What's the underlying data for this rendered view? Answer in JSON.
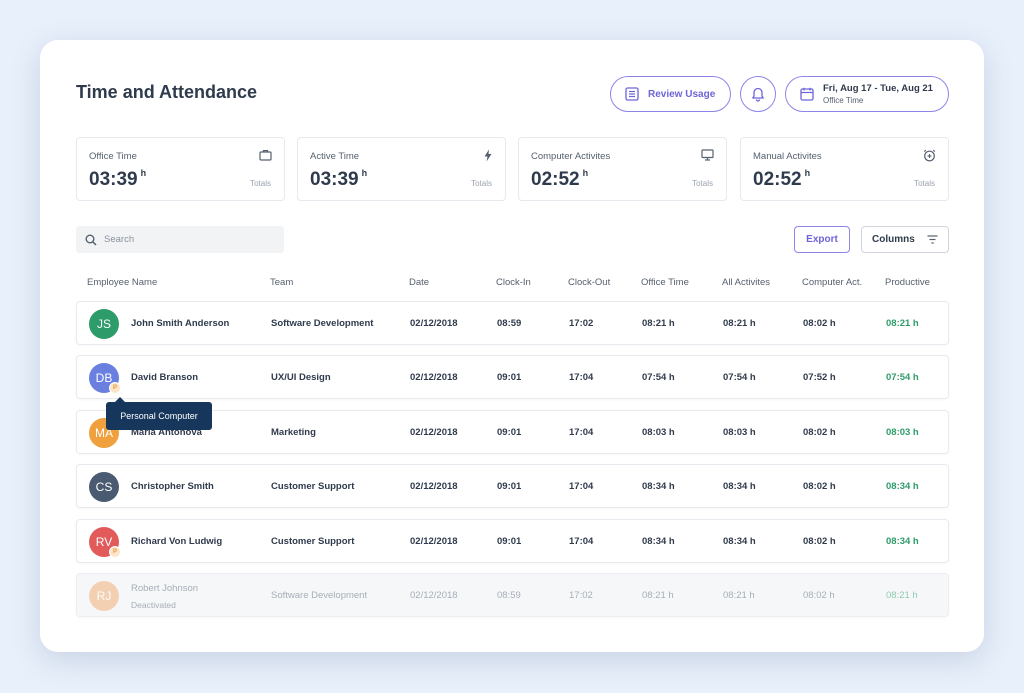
{
  "header": {
    "title": "Time and Attendance",
    "review_label": "Review Usage",
    "date_range": "Fri, Aug 17 - Tue, Aug 21",
    "date_scope": "Office Time"
  },
  "stats": [
    {
      "label": "Office Time",
      "value": "03:39",
      "unit": "h",
      "total": "Totals",
      "icon": "briefcase-icon"
    },
    {
      "label": "Active Time",
      "value": "03:39",
      "unit": "h",
      "total": "Totals",
      "icon": "bolt-icon"
    },
    {
      "label": "Computer Activites",
      "value": "02:52",
      "unit": "h",
      "total": "Totals",
      "icon": "monitor-icon"
    },
    {
      "label": "Manual Activites",
      "value": "02:52",
      "unit": "h",
      "total": "Totals",
      "icon": "alarm-icon"
    }
  ],
  "toolbar": {
    "search_placeholder": "Search",
    "export_label": "Export",
    "columns_label": "Columns"
  },
  "columns": [
    "Employee Name",
    "Team",
    "Date",
    "Clock-In",
    "Clock-Out",
    "Office Time",
    "All Activites",
    "Computer Act.",
    "Productive"
  ],
  "rows": [
    {
      "initials": "JS",
      "name": "John Smith Anderson",
      "team": "Software Development",
      "date": "02/12/2018",
      "clock_in": "08:59",
      "clock_out": "17:02",
      "office": "08:21 h",
      "all": "08:21 h",
      "computer": "08:02 h",
      "productive": "08:21 h",
      "color": "#2e9b6a"
    },
    {
      "initials": "DB",
      "name": "David Branson",
      "team": "UX/UI Design",
      "date": "02/12/2018",
      "clock_in": "09:01",
      "clock_out": "17:04",
      "office": "07:54 h",
      "all": "07:54 h",
      "computer": "07:52 h",
      "productive": "07:54 h",
      "color": "#6b7fe0",
      "badge": "P"
    },
    {
      "initials": "MA",
      "name": "Maria Antonova",
      "team": "Marketing",
      "date": "02/12/2018",
      "clock_in": "09:01",
      "clock_out": "17:04",
      "office": "08:03 h",
      "all": "08:03 h",
      "computer": "08:02 h",
      "productive": "08:03 h",
      "color": "#f0a03c"
    },
    {
      "initials": "CS",
      "name": "Christopher Smith",
      "team": "Customer Support",
      "date": "02/12/2018",
      "clock_in": "09:01",
      "clock_out": "17:04",
      "office": "08:34 h",
      "all": "08:34 h",
      "computer": "08:02 h",
      "productive": "08:34 h",
      "color": "#4a5a70"
    },
    {
      "initials": "RV",
      "name": "Richard Von Ludwig",
      "team": "Customer Support",
      "date": "02/12/2018",
      "clock_in": "09:01",
      "clock_out": "17:04",
      "office": "08:34 h",
      "all": "08:34 h",
      "computer": "08:02 h",
      "productive": "08:34 h",
      "color": "#e25a5a",
      "badge": "P"
    },
    {
      "initials": "RJ",
      "name": "Robert Johnson",
      "status": "Deactivated",
      "team": "Software Development",
      "date": "02/12/2018",
      "clock_in": "08:59",
      "clock_out": "17:02",
      "office": "08:21 h",
      "all": "08:21 h",
      "computer": "08:02 h",
      "productive": "08:21 h",
      "color": "#f2b27a"
    }
  ],
  "tooltip": {
    "text": "Personal Computer"
  },
  "colors": {
    "accent": "#6d64d8",
    "productive": "#2e9b6a",
    "tooltip": "#16365c"
  }
}
